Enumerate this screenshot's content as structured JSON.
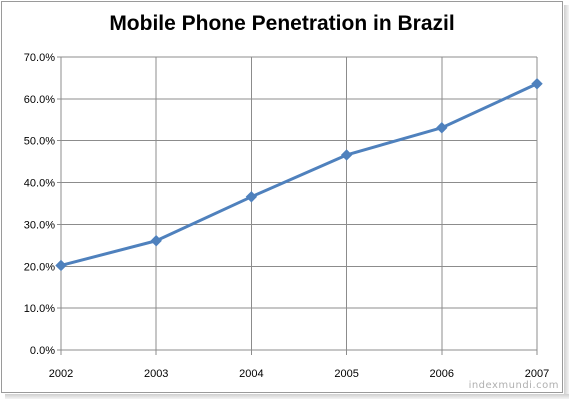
{
  "chart_data": {
    "type": "line",
    "title": "Mobile Phone Penetration in Brazil",
    "xlabel": "",
    "ylabel": "",
    "categories": [
      "2002",
      "2003",
      "2004",
      "2005",
      "2006",
      "2007"
    ],
    "series": [
      {
        "values": [
          20.2,
          26.1,
          36.6,
          46.6,
          53.1,
          63.6
        ]
      }
    ],
    "ylim": [
      0,
      70
    ],
    "y_ticks": [
      "0.0%",
      "10.0%",
      "20.0%",
      "30.0%",
      "40.0%",
      "50.0%",
      "60.0%",
      "70.0%"
    ],
    "y_tick_values": [
      0,
      10,
      20,
      30,
      40,
      50,
      60,
      70
    ],
    "grid": true,
    "legend": "none",
    "line_color": "#4f81bd",
    "grid_color": "#8c8c8c"
  },
  "watermark": "indexmundi.com"
}
